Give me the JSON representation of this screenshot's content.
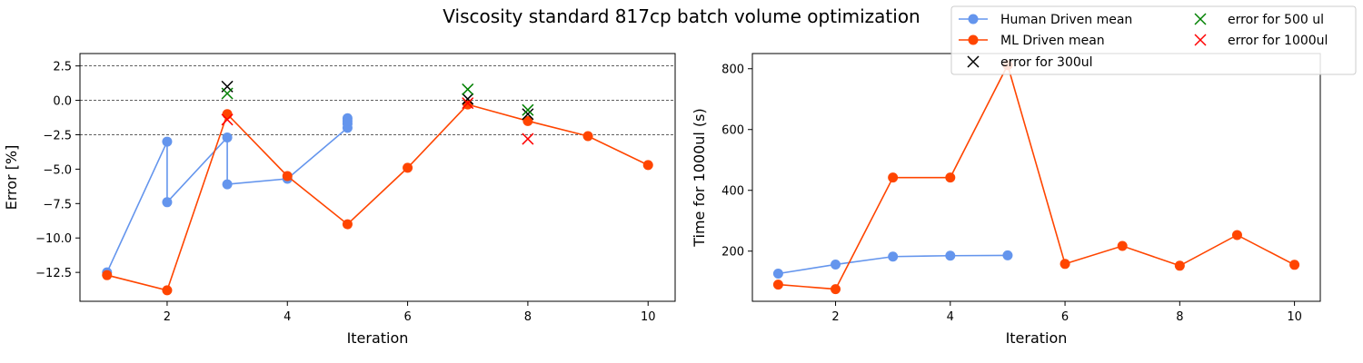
{
  "figure": {
    "title": "Viscosity standard 817cp batch volume optimization"
  },
  "legend": {
    "entries": [
      {
        "label": "Human Driven mean",
        "color": "#6495ED",
        "marker": "circle-line"
      },
      {
        "label": "ML Driven mean",
        "color": "#FF4500",
        "marker": "circle-line"
      },
      {
        "label": "error for 300ul",
        "color": "#000000",
        "marker": "x"
      },
      {
        "label": "error for 500 ul",
        "color": "#008000",
        "marker": "x"
      },
      {
        "label": "error for 1000ul",
        "color": "#FF0000",
        "marker": "x"
      }
    ]
  },
  "chart_data": [
    {
      "type": "line",
      "xlabel": "Iteration",
      "ylabel": "Error [%]",
      "xlim": [
        0.55,
        10.45
      ],
      "ylim": [
        -14.6,
        3.4
      ],
      "xticks": [
        2,
        4,
        6,
        8,
        10
      ],
      "xtick_labels": [
        "2",
        "4",
        "6",
        "8",
        "10"
      ],
      "yticks": [
        -12.5,
        -10.0,
        -7.5,
        -5.0,
        -2.5,
        0.0,
        2.5
      ],
      "ytick_labels": [
        "−12.5",
        "−10.0",
        "−7.5",
        "−5.0",
        "−2.5",
        "0.0",
        "2.5"
      ],
      "reference_lines": [
        2.5,
        0.0,
        -2.5
      ],
      "series": [
        {
          "name": "Human Driven mean",
          "color": "#6495ED",
          "x": [
            1,
            2,
            2,
            3,
            3,
            4,
            5,
            5,
            5,
            5
          ],
          "y": [
            -12.5,
            -3.0,
            -7.4,
            -2.7,
            -6.1,
            -5.7,
            -2.0,
            -1.7,
            -1.5,
            -1.3
          ]
        },
        {
          "name": "ML Driven mean",
          "color": "#FF4500",
          "x": [
            1,
            2,
            3,
            4,
            5,
            6,
            7,
            8,
            9,
            10
          ],
          "y": [
            -12.7,
            -13.8,
            -1.0,
            -5.5,
            -9.0,
            -4.9,
            -0.3,
            -1.5,
            -2.6,
            -4.7
          ]
        }
      ],
      "error_markers": [
        {
          "name": "error for 300ul",
          "color": "#000000",
          "x": [
            3,
            7,
            8
          ],
          "y": [
            1.0,
            0.1,
            -1.0
          ]
        },
        {
          "name": "error for 500 ul",
          "color": "#008000",
          "x": [
            3,
            7,
            8
          ],
          "y": [
            0.5,
            0.8,
            -0.7
          ]
        },
        {
          "name": "error for 1000ul",
          "color": "#FF0000",
          "x": [
            3,
            7,
            8
          ],
          "y": [
            -1.4,
            -0.2,
            -2.8
          ]
        }
      ]
    },
    {
      "type": "line",
      "xlabel": "Iteration",
      "ylabel": "Time for 1000ul (s)",
      "xlim": [
        0.55,
        10.45
      ],
      "ylim": [
        35,
        850
      ],
      "xticks": [
        2,
        4,
        6,
        8,
        10
      ],
      "xtick_labels": [
        "2",
        "4",
        "6",
        "8",
        "10"
      ],
      "yticks": [
        200,
        400,
        600,
        800
      ],
      "ytick_labels": [
        "200",
        "400",
        "600",
        "800"
      ],
      "series": [
        {
          "name": "Human Driven mean",
          "color": "#6495ED",
          "x": [
            1,
            2,
            3,
            4,
            5
          ],
          "y": [
            126,
            156,
            182,
            185,
            186
          ]
        },
        {
          "name": "ML Driven mean",
          "color": "#FF4500",
          "x": [
            1,
            2,
            3,
            4,
            5,
            6,
            7,
            8,
            9,
            10
          ],
          "y": [
            90,
            75,
            442,
            442,
            812,
            158,
            217,
            152,
            253,
            155
          ]
        }
      ]
    }
  ]
}
